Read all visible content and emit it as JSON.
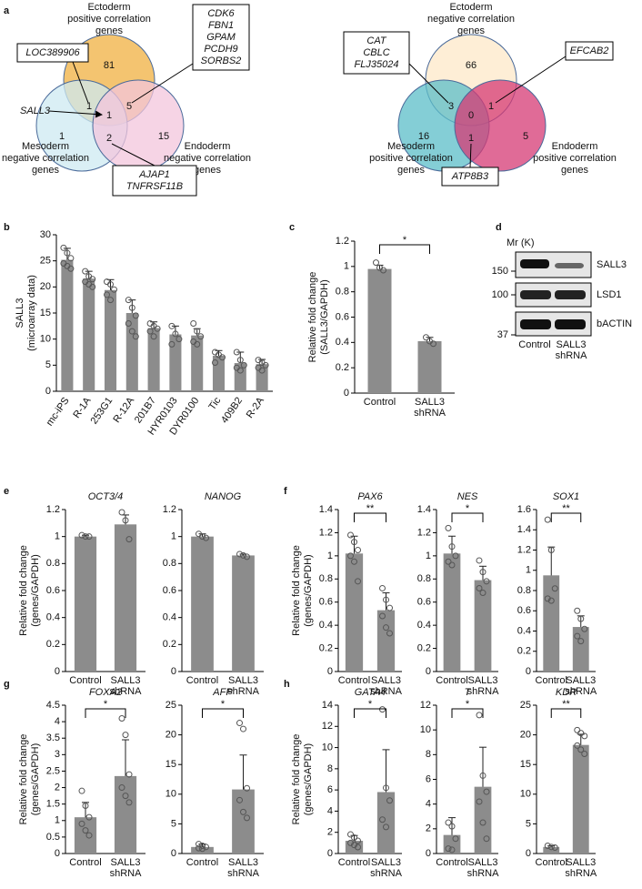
{
  "chart_data": [
    {
      "type": "venn",
      "sets": [
        {
          "label": [
            "Ectoderm",
            "positive correlation",
            "genes"
          ],
          "color": "#f0b040"
        },
        {
          "label": [
            "Mesoderm",
            "negative correlation",
            "genes"
          ],
          "color": "#cdeaf2"
        },
        {
          "label": [
            "Endoderm",
            "negative correlation",
            "genes"
          ],
          "color": "#f3c5dc"
        }
      ],
      "counts": {
        "E": 81,
        "M": 1,
        "N": 15,
        "EM": 1,
        "EN": 5,
        "MN": 2,
        "EMN": 1
      },
      "callouts": [
        {
          "genes": [
            "LOC389906"
          ]
        },
        {
          "genes": [
            "CDK6",
            "FBN1",
            "GPAM",
            "PCDH9",
            "SORBS2"
          ]
        },
        {
          "genes": [
            "AJAP1",
            "TNFRSF11B"
          ]
        }
      ],
      "arrow_label": "SALL3"
    },
    {
      "type": "venn",
      "sets": [
        {
          "label": [
            "Ectoderm",
            "negative correlation",
            "genes"
          ],
          "color": "#fde8c8"
        },
        {
          "label": [
            "Mesoderm",
            "positive correlation",
            "genes"
          ],
          "color": "#5bbec8"
        },
        {
          "label": [
            "Endoderm",
            "positive correlation",
            "genes"
          ],
          "color": "#d63a74"
        }
      ],
      "counts": {
        "E": 66,
        "M": 16,
        "N": 5,
        "EM": 3,
        "EN": 1,
        "MN": 1,
        "EMN": 0
      },
      "callouts": [
        {
          "genes": [
            "CAT",
            "CBLC",
            "FLJ35024"
          ]
        },
        {
          "genes": [
            "EFCAB2"
          ]
        },
        {
          "genes": [
            "ATP8B3"
          ]
        }
      ]
    },
    {
      "type": "bar",
      "ylabel": [
        "SALL3",
        "(microarray data)"
      ],
      "color": "#8c8c8c",
      "categories": [
        "mc-iPS",
        "R-1A",
        "253G1",
        "R-12A",
        "201B7",
        "HYR0103",
        "DYR0100",
        "Tic",
        "409B2",
        "R-2A"
      ],
      "values": [
        25.2,
        21.6,
        19.4,
        15.0,
        12.1,
        10.9,
        10.7,
        6.8,
        5.4,
        5.2
      ],
      "errors": [
        2.2,
        1.4,
        2.0,
        2.5,
        1.2,
        1.6,
        1.3,
        1.0,
        2.1,
        0.9
      ],
      "points": [
        [
          27.5,
          26.5,
          25.5,
          24.5,
          24,
          23.5
        ],
        [
          23,
          22,
          21.5,
          21,
          20.5,
          20
        ],
        [
          21,
          20.5,
          19.5,
          18.5,
          17.5
        ],
        [
          17.5,
          16,
          14.5,
          13,
          11.5,
          10.5
        ],
        [
          13,
          12.5,
          12,
          11.5,
          10.5
        ],
        [
          12.5,
          11,
          10,
          9
        ],
        [
          13,
          11.5,
          10.5,
          9.5,
          9
        ],
        [
          7.5,
          7,
          6.5,
          5.5
        ],
        [
          7.5,
          6,
          5,
          4.5,
          4
        ],
        [
          6,
          5.5,
          5,
          4.5,
          4
        ]
      ],
      "ylim": [
        0,
        30
      ],
      "yticks": [
        0,
        5,
        10,
        15,
        20,
        25,
        30
      ]
    },
    {
      "type": "bar",
      "ylabel": [
        "Relative fold change",
        "(SALL3/GAPDH)"
      ],
      "color": "#8c8c8c",
      "categories": [
        "Control",
        "SALL3 shRNA"
      ],
      "values": [
        0.98,
        0.41
      ],
      "errors": [
        0.03,
        0.03
      ],
      "points": [
        [
          1.03,
          0.99,
          0.97
        ],
        [
          0.44,
          0.41,
          0.39
        ]
      ],
      "significance": "*",
      "ylim": [
        0,
        1.2
      ],
      "yticks": [
        0,
        0.2,
        0.4,
        0.6,
        0.8,
        1,
        1.2
      ]
    },
    {
      "type": "bar",
      "title": "OCT3/4",
      "ylabel": [
        "Relative fold change",
        "(genes/GAPDH)"
      ],
      "color": "#8c8c8c",
      "categories": [
        "Control",
        "SALL3 shRNA"
      ],
      "values": [
        1.0,
        1.09
      ],
      "errors": [
        0.01,
        0.07
      ],
      "points": [
        [
          1.01,
          1.0,
          1.0
        ],
        [
          1.18,
          1.12,
          0.98
        ]
      ],
      "ylim": [
        0,
        1.2
      ],
      "yticks": [
        0,
        0.2,
        0.4,
        0.6,
        0.8,
        1,
        1.2
      ]
    },
    {
      "type": "bar",
      "title": "NANOG",
      "color": "#8c8c8c",
      "categories": [
        "Control",
        "SALL3 shRNA"
      ],
      "values": [
        1.0,
        0.86
      ],
      "errors": [
        0.02,
        0.01
      ],
      "points": [
        [
          1.02,
          1.0,
          0.99
        ],
        [
          0.87,
          0.86,
          0.85
        ]
      ],
      "ylim": [
        0,
        1.2
      ],
      "yticks": [
        0,
        0.2,
        0.4,
        0.6,
        0.8,
        1,
        1.2
      ]
    },
    {
      "type": "bar",
      "title": "PAX6",
      "ylabel": [
        "Relative fold change",
        "(genes/GAPDH)"
      ],
      "color": "#8c8c8c",
      "categories": [
        "Control",
        "SALL3 shRNA"
      ],
      "values": [
        1.02,
        0.53
      ],
      "errors": [
        0.15,
        0.15
      ],
      "points": [
        [
          1.18,
          1.12,
          1.05,
          1.0,
          0.95,
          0.78
        ],
        [
          0.72,
          0.62,
          0.55,
          0.48,
          0.38,
          0.33
        ]
      ],
      "significance": "**",
      "ylim": [
        0,
        1.4
      ],
      "yticks": [
        0,
        0.2,
        0.4,
        0.6,
        0.8,
        1,
        1.2,
        1.4
      ]
    },
    {
      "type": "bar",
      "title": "NES",
      "color": "#8c8c8c",
      "categories": [
        "Control",
        "SALL3 shRNA"
      ],
      "values": [
        1.02,
        0.79
      ],
      "errors": [
        0.15,
        0.12
      ],
      "points": [
        [
          1.24,
          1.08,
          1.0,
          0.95,
          0.92
        ],
        [
          0.96,
          0.86,
          0.78,
          0.72,
          0.68
        ]
      ],
      "significance": "*",
      "ylim": [
        0,
        1.4
      ],
      "yticks": [
        0,
        0.2,
        0.4,
        0.6,
        0.8,
        1,
        1.2,
        1.4
      ]
    },
    {
      "type": "bar",
      "title": "SOX1",
      "color": "#8c8c8c",
      "categories": [
        "Control",
        "SALL3 shRNA"
      ],
      "values": [
        0.95,
        0.44
      ],
      "errors": [
        0.28,
        0.11
      ],
      "points": [
        [
          1.5,
          1.2,
          0.82,
          0.72,
          0.7
        ],
        [
          0.6,
          0.52,
          0.42,
          0.35,
          0.3
        ]
      ],
      "significance": "**",
      "ylim": [
        0,
        1.6
      ],
      "yticks": [
        0,
        0.2,
        0.4,
        0.6,
        0.8,
        1,
        1.2,
        1.4,
        1.6
      ]
    },
    {
      "type": "bar",
      "title": "FOXA2",
      "ylabel": [
        "Relative fold change",
        "(genes/GAPDH)"
      ],
      "color": "#8c8c8c",
      "categories": [
        "Control",
        "SALL3 shRNA"
      ],
      "values": [
        1.1,
        2.35
      ],
      "errors": [
        0.45,
        1.1
      ],
      "points": [
        [
          1.9,
          1.45,
          1.1,
          0.9,
          0.7,
          0.55
        ],
        [
          4.1,
          3.6,
          2.4,
          2.0,
          1.75,
          1.55
        ]
      ],
      "significance": "*",
      "ylim": [
        0,
        4.5
      ],
      "yticks": [
        0,
        0.5,
        1,
        1.5,
        2,
        2.5,
        3,
        3.5,
        4,
        4.5
      ]
    },
    {
      "type": "bar",
      "title": "AFP",
      "color": "#8c8c8c",
      "categories": [
        "Control",
        "SALL3 shRNA"
      ],
      "values": [
        1.1,
        10.8
      ],
      "errors": [
        0.5,
        5.8
      ],
      "points": [
        [
          1.6,
          1.3,
          1.1,
          0.9,
          0.8
        ],
        [
          22,
          21,
          11,
          9,
          7,
          6
        ]
      ],
      "significance": "*",
      "ylim": [
        0,
        25
      ],
      "yticks": [
        0,
        5,
        10,
        15,
        20,
        25
      ]
    },
    {
      "type": "bar",
      "title": "GATA4",
      "ylabel": [
        "Relative fold change",
        "(genes/GAPDH)"
      ],
      "color": "#8c8c8c",
      "categories": [
        "Control",
        "SALL3 shRNA"
      ],
      "values": [
        1.2,
        5.8
      ],
      "errors": [
        0.5,
        4.0
      ],
      "points": [
        [
          1.8,
          1.5,
          1.2,
          1.0,
          0.8,
          0.6
        ],
        [
          13.6,
          6.2,
          5,
          3.2,
          2.5
        ]
      ],
      "significance": "*",
      "ylim": [
        0,
        14
      ],
      "yticks": [
        0,
        2,
        4,
        6,
        8,
        10,
        12,
        14
      ]
    },
    {
      "type": "bar",
      "title": "T",
      "color": "#8c8c8c",
      "categories": [
        "Control",
        "SALL3 shRNA"
      ],
      "values": [
        1.5,
        5.4
      ],
      "errors": [
        1.4,
        3.2
      ],
      "points": [
        [
          2.5,
          2.2,
          1.2,
          0.4,
          0.3
        ],
        [
          11.2,
          6.3,
          5,
          4.2,
          2.5,
          1.2
        ]
      ],
      "significance": "*",
      "ylim": [
        0,
        12
      ],
      "yticks": [
        0,
        2,
        4,
        6,
        8,
        10,
        12
      ]
    },
    {
      "type": "bar",
      "title": "KDR",
      "color": "#8c8c8c",
      "categories": [
        "Control",
        "SALL3 shRNA"
      ],
      "values": [
        1.1,
        18.3
      ],
      "errors": [
        0.2,
        1.8
      ],
      "points": [
        [
          1.3,
          1.1,
          1.0
        ],
        [
          20.8,
          20.3,
          19.8,
          18.2,
          17.5,
          16.8
        ]
      ],
      "significance": "**",
      "ylim": [
        0,
        25
      ],
      "yticks": [
        0,
        5,
        10,
        15,
        20,
        25
      ]
    }
  ],
  "western_blot": {
    "mr_label": "Mr (K)",
    "markers": [
      150,
      100,
      37
    ],
    "bands": [
      "SALL3",
      "LSD1",
      "bACTIN"
    ],
    "lanes": [
      "Control",
      "SALL3 shRNA"
    ]
  },
  "panel_labels": [
    "a",
    "b",
    "c",
    "d",
    "e",
    "f",
    "g",
    "h"
  ]
}
